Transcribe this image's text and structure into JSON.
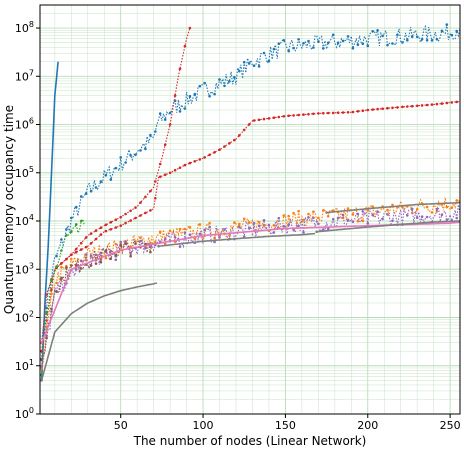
{
  "chart_data": {
    "type": "line",
    "xlabel": "The number of nodes (Linear Network)",
    "ylabel": "Quantum memory occupancy time",
    "xlim": [
      1,
      256
    ],
    "ylim": [
      1,
      300000000
    ],
    "y_scale": "log",
    "grid": "major and minor, green",
    "x_tick_labels": [
      "50",
      "100",
      "150",
      "200",
      "250"
    ],
    "x_ticks": [
      50,
      100,
      150,
      200,
      250
    ],
    "y_tick_labels": [
      "10^0",
      "10^1",
      "10^2",
      "10^3",
      "10^4",
      "10^5",
      "10^6",
      "10^7",
      "10^8"
    ],
    "y_ticks": [
      1,
      10,
      100,
      1000,
      10000,
      100000,
      1000000,
      10000000,
      100000000
    ],
    "series": [
      {
        "color": "#1f77b4",
        "line_style": "solid",
        "noisy": false,
        "x": [
          2,
          4,
          6,
          8,
          10,
          12
        ],
        "values": [
          5,
          200,
          3000,
          100000,
          4000000,
          20000000
        ]
      },
      {
        "color": "#1f77b4",
        "line_style": "dotted",
        "noisy": true,
        "x": [
          2,
          5,
          10,
          20,
          30,
          40,
          50,
          60,
          70,
          72,
          80,
          100,
          120,
          130,
          150,
          200,
          250,
          256
        ],
        "values": [
          20,
          200,
          1500,
          10000,
          40000,
          80000,
          150000,
          300000,
          500000,
          1000000,
          2000000,
          5000000,
          10000000,
          20000000,
          40000000,
          60000000,
          80000000,
          100000000
        ]
      },
      {
        "color": "#d62728",
        "line_style": "dotted",
        "noisy": false,
        "x": [
          2,
          5,
          10,
          20,
          30,
          40,
          50,
          60,
          70,
          75,
          80,
          85,
          90,
          92
        ],
        "values": [
          30,
          300,
          1000,
          2000,
          5000,
          8000,
          12000,
          20000,
          50000,
          200000,
          1000000,
          10000000,
          60000000,
          100000000
        ]
      },
      {
        "color": "#d62728",
        "line_style": "dotted",
        "noisy": false,
        "x": [
          2,
          10,
          20,
          30,
          40,
          50,
          60,
          70,
          73,
          80,
          90,
          100,
          110,
          120,
          130,
          150,
          170,
          190,
          200,
          220,
          240,
          256
        ],
        "values": [
          20,
          1000,
          2000,
          3000,
          6000,
          8000,
          12000,
          18000,
          80000,
          100000,
          150000,
          200000,
          300000,
          500000,
          1200000,
          1500000,
          1700000,
          1800000,
          2000000,
          2300000,
          2600000,
          3000000
        ]
      },
      {
        "color": "#2ca02c",
        "line_style": "dotted",
        "noisy": true,
        "x": [
          2,
          5,
          8,
          12,
          16,
          20,
          24,
          28
        ],
        "values": [
          8,
          100,
          400,
          1500,
          4000,
          5000,
          6000,
          8000
        ]
      },
      {
        "color": "#ff7f0e",
        "line_style": "dotted",
        "noisy": true,
        "x": [
          2,
          10,
          20,
          30,
          50,
          70,
          100,
          130,
          150,
          170,
          200,
          230,
          256
        ],
        "values": [
          10,
          600,
          1200,
          2000,
          3000,
          4500,
          6000,
          8000,
          10000,
          12000,
          15000,
          20000,
          25000
        ]
      },
      {
        "color": "#9467bd",
        "line_style": "dotted",
        "noisy": true,
        "x": [
          2,
          10,
          20,
          30,
          50,
          70,
          100,
          130,
          150,
          170,
          200,
          230,
          256
        ],
        "values": [
          8,
          300,
          800,
          1500,
          2500,
          3500,
          5000,
          6500,
          8000,
          9000,
          11000,
          13000,
          15000
        ]
      },
      {
        "color": "#8c564b",
        "line_style": "dotted",
        "noisy": true,
        "x": [
          2,
          10,
          20,
          30,
          40,
          50,
          60,
          70
        ],
        "values": [
          10,
          400,
          1000,
          1500,
          2000,
          2500,
          3000,
          3500
        ]
      },
      {
        "color": "#e377c2",
        "line_style": "solid",
        "noisy": false,
        "x": [
          2,
          20,
          50,
          100,
          150,
          200,
          250,
          256
        ],
        "values": [
          30,
          1000,
          2500,
          5000,
          7000,
          8000,
          9000,
          9500
        ]
      },
      {
        "color": "#7f7f7f",
        "line_style": "solid",
        "noisy": false,
        "x": [
          2,
          10,
          20,
          30,
          40,
          50,
          60,
          70,
          72
        ],
        "values": [
          5,
          50,
          120,
          200,
          280,
          360,
          430,
          500,
          520
        ]
      },
      {
        "color": "#7f7f7f",
        "line_style": "solid",
        "noisy": false,
        "x": [
          73,
          80,
          100,
          120,
          140,
          160,
          168
        ],
        "values": [
          3000,
          3200,
          3800,
          4300,
          4800,
          5200,
          5500
        ]
      },
      {
        "color": "#7f7f7f",
        "line_style": "solid",
        "noisy": false,
        "x": [
          169,
          180,
          200,
          220,
          240,
          256
        ],
        "values": [
          6000,
          6500,
          7500,
          8500,
          9500,
          10000
        ]
      },
      {
        "color": "#7f7f7f",
        "line_style": "solid",
        "noisy": false,
        "x": [
          175,
          200,
          230,
          256
        ],
        "values": [
          15000,
          18000,
          22000,
          24000
        ]
      }
    ]
  }
}
